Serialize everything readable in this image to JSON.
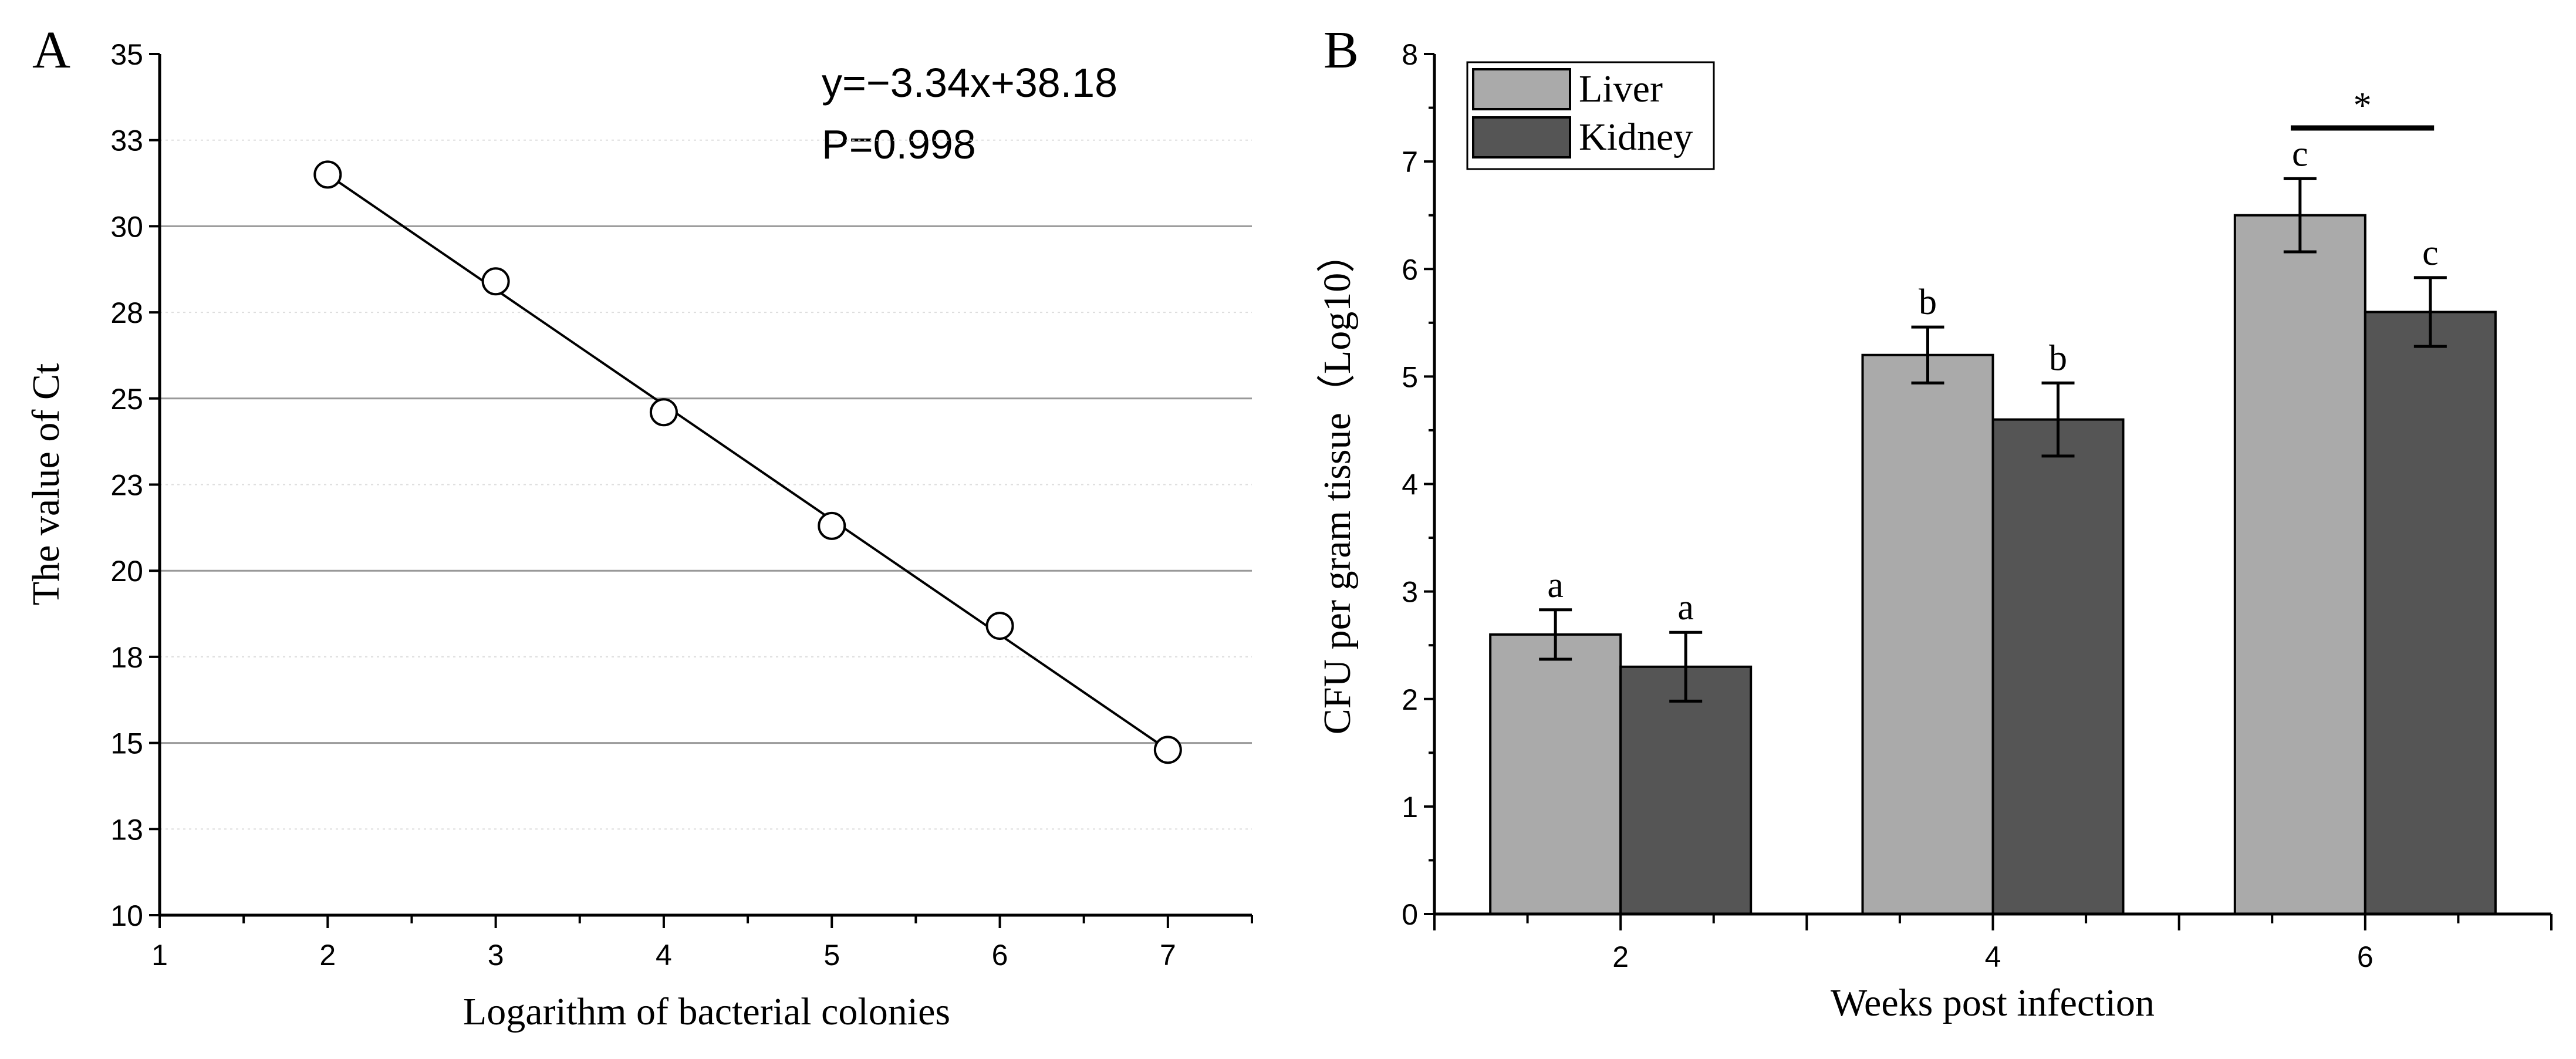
{
  "chart_data": [
    {
      "type": "scatter",
      "panel_label": "A",
      "title": "",
      "xlabel": "Logarithm of bacterial colonies",
      "ylabel": "The value of Ct",
      "xlim": [
        1,
        7.5
      ],
      "ylim": [
        10,
        35
      ],
      "x_ticks": [
        "1",
        "2",
        "3",
        "4",
        "5",
        "6",
        "7"
      ],
      "y_ticks": [
        "10",
        "13",
        "15",
        "18",
        "20",
        "23",
        "25",
        "28",
        "30",
        "33",
        "35"
      ],
      "grid": true,
      "points": {
        "x": [
          2,
          3,
          4,
          5,
          6,
          7
        ],
        "y": [
          31.5,
          28.4,
          24.6,
          21.3,
          18.4,
          14.8
        ]
      },
      "fit_line": {
        "slope": -3.34,
        "intercept": 38.18
      },
      "annotations": {
        "equation": "y=−3.34x+38.18",
        "p": "P=0.998"
      }
    },
    {
      "type": "bar",
      "panel_label": "B",
      "title": "",
      "xlabel": "Weeks post infection",
      "ylabel": "CFU per gram tissue（Log10）",
      "categories": [
        "2",
        "4",
        "6"
      ],
      "ylim": [
        0,
        8
      ],
      "y_ticks": [
        "0",
        "1",
        "2",
        "3",
        "4",
        "5",
        "6",
        "7",
        "8"
      ],
      "legend_position": "top-left",
      "series": [
        {
          "name": "Liver",
          "color": "#aaaaaa",
          "values": [
            2.6,
            5.2,
            6.5
          ],
          "errors": [
            0.23,
            0.26,
            0.34
          ],
          "letters": [
            "a",
            "b",
            "c"
          ]
        },
        {
          "name": "Kidney",
          "color": "#555555",
          "values": [
            2.3,
            4.6,
            5.6
          ],
          "errors": [
            0.32,
            0.34,
            0.32
          ],
          "letters": [
            "a",
            "b",
            "c"
          ]
        }
      ],
      "significance": {
        "label": "*",
        "category": "6"
      }
    }
  ]
}
